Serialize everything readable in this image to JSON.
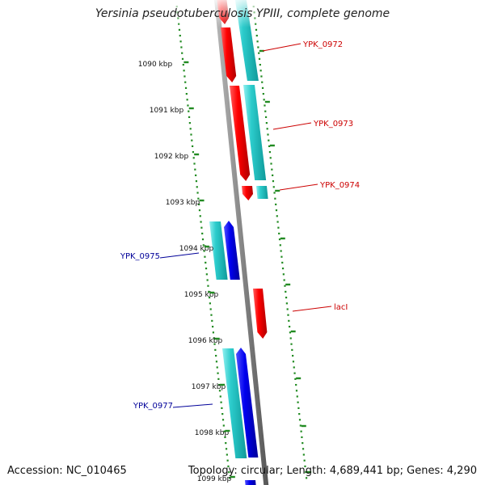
{
  "title": "Yersinia pseudotuberculosis YPIII, complete genome",
  "footer": {
    "accession": "Accession: NC_010465",
    "topology": "Topology: circular; Length: 4,689,441 bp; Genes: 4,290"
  },
  "colors": {
    "forward_cds": "#ff0000",
    "reverse_cds": "#0000ee",
    "gene": "#22cccc",
    "backbone": "#888888",
    "ticks": "#228b22",
    "forward_label": "#cc0000",
    "reverse_label": "#000099"
  },
  "axis": {
    "ticks": [
      "1090 kbp",
      "1091 kbp",
      "1092 kbp",
      "1093 kbp",
      "1094 kbp",
      "1095 kbp",
      "1096 kbp",
      "1097 kbp",
      "1098 kbp",
      "1099 kbp"
    ]
  },
  "features": {
    "forward_labels": [
      "YPK_0972",
      "YPK_0973",
      "YPK_0974",
      "lacI"
    ],
    "reverse_labels": [
      "YPK_0975",
      "YPK_0977"
    ]
  }
}
